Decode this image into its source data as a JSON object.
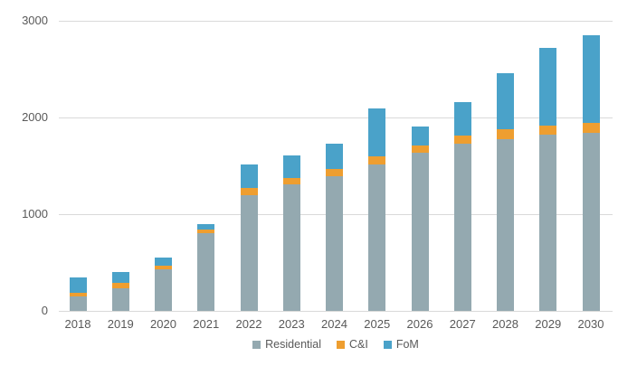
{
  "chart_data": {
    "type": "bar",
    "stacked": true,
    "title": "",
    "xlabel": "",
    "ylabel": "",
    "categories": [
      "2018",
      "2019",
      "2020",
      "2021",
      "2022",
      "2023",
      "2024",
      "2025",
      "2026",
      "2027",
      "2028",
      "2029",
      "2030"
    ],
    "series": [
      {
        "name": "Residential",
        "color": "#94a9b0",
        "values": [
          145,
          230,
          430,
          805,
          1200,
          1305,
          1390,
          1515,
          1640,
          1730,
          1780,
          1825,
          1840
        ]
      },
      {
        "name": "C&I",
        "color": "#ee9e30",
        "values": [
          45,
          60,
          40,
          40,
          75,
          70,
          75,
          80,
          70,
          85,
          100,
          95,
          105
        ]
      },
      {
        "name": "FoM",
        "color": "#4aa2c9",
        "values": [
          155,
          110,
          80,
          55,
          240,
          230,
          265,
          495,
          200,
          345,
          580,
          795,
          905
        ]
      }
    ],
    "totals": [
      345,
      400,
      550,
      900,
      1515,
      1605,
      1730,
      2090,
      1910,
      2160,
      2460,
      2715,
      2850
    ],
    "ylim": [
      0,
      3000
    ],
    "yticks": [
      "0",
      "1000",
      "2000",
      "3000"
    ],
    "grid": true,
    "gridline_color": "#d9d9d9",
    "axis_label_color": "#595959",
    "background_color": "#ffffff",
    "legend_position": "bottom",
    "legend_entries": [
      "Residential",
      "C&I",
      "FoM"
    ]
  }
}
